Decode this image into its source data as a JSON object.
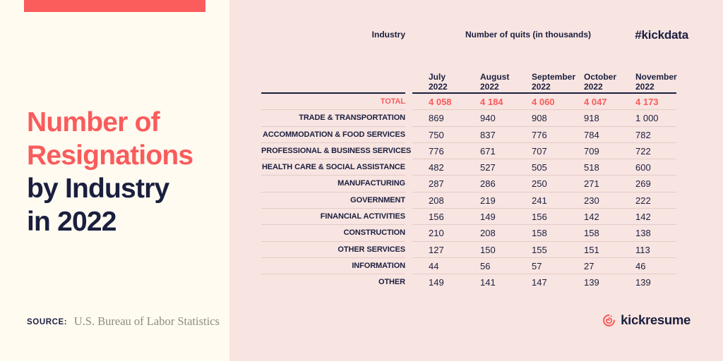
{
  "colors": {
    "left_background": "#FFFBF1",
    "right_background": "#F8E4E1",
    "accent_coral": "#F95C5C",
    "navy": "#1A1F3E",
    "separator": "#E3CCC8",
    "source_gray": "#8F8B85"
  },
  "left_panel": {
    "title_line1": "Number of",
    "title_line2": "Resignations",
    "title_line3": "by Industry",
    "title_line4": "in 2022",
    "source_label": "SOURCE:",
    "source_text": "U.S. Bureau of Labor Statistics"
  },
  "header": {
    "industry_label": "Industry",
    "quits_label": "Number of quits (in thousands)",
    "hashtag": "#kickdata"
  },
  "table": {
    "months": [
      {
        "name": "July",
        "year": "2022"
      },
      {
        "name": "August",
        "year": "2022"
      },
      {
        "name": "September",
        "year": "2022"
      },
      {
        "name": "October",
        "year": "2022"
      },
      {
        "name": "November",
        "year": "2022"
      }
    ],
    "rows": [
      {
        "label": "TOTAL",
        "highlight": true,
        "values": [
          "4 058",
          "4 184",
          "4 060",
          "4 047",
          "4 173"
        ]
      },
      {
        "label": "TRADE & TRANSPORTATION",
        "highlight": false,
        "values": [
          "869",
          "940",
          "908",
          "918",
          "1 000"
        ]
      },
      {
        "label": "ACCOMMODATION & FOOD SERVICES",
        "highlight": false,
        "values": [
          "750",
          "837",
          "776",
          "784",
          "782"
        ]
      },
      {
        "label": "PROFESSIONAL & BUSINESS SERVICES",
        "highlight": false,
        "values": [
          "776",
          "671",
          "707",
          "709",
          "722"
        ]
      },
      {
        "label": "HEALTH CARE & SOCIAL ASSISTANCE",
        "highlight": false,
        "values": [
          "482",
          "527",
          "505",
          "518",
          "600"
        ]
      },
      {
        "label": "MANUFACTURING",
        "highlight": false,
        "values": [
          "287",
          "286",
          "250",
          "271",
          "269"
        ]
      },
      {
        "label": "GOVERNMENT",
        "highlight": false,
        "values": [
          "208",
          "219",
          "241",
          "230",
          "222"
        ]
      },
      {
        "label": "FINANCIAL ACTIVITIES",
        "highlight": false,
        "values": [
          "156",
          "149",
          "156",
          "142",
          "142"
        ]
      },
      {
        "label": "CONSTRUCTION",
        "highlight": false,
        "values": [
          "210",
          "208",
          "158",
          "158",
          "138"
        ]
      },
      {
        "label": "OTHER SERVICES",
        "highlight": false,
        "values": [
          "127",
          "150",
          "155",
          "151",
          "113"
        ]
      },
      {
        "label": "INFORMATION",
        "highlight": false,
        "values": [
          "44",
          "56",
          "57",
          "27",
          "46"
        ]
      },
      {
        "label": "OTHER",
        "highlight": false,
        "values": [
          "149",
          "141",
          "147",
          "139",
          "139"
        ]
      }
    ]
  },
  "footer": {
    "brand": "kickresume",
    "logo_icon": "chameleon-spiral-icon"
  },
  "chart_data": {
    "type": "table",
    "title": "Number of Resignations by Industry in 2022",
    "subtitle": "Number of quits (in thousands)",
    "source": "U.S. Bureau of Labor Statistics",
    "columns": [
      "July 2022",
      "August 2022",
      "September 2022",
      "October 2022",
      "November 2022"
    ],
    "categories": [
      "TOTAL",
      "TRADE & TRANSPORTATION",
      "ACCOMMODATION & FOOD SERVICES",
      "PROFESSIONAL & BUSINESS SERVICES",
      "HEALTH CARE & SOCIAL ASSISTANCE",
      "MANUFACTURING",
      "GOVERNMENT",
      "FINANCIAL ACTIVITIES",
      "CONSTRUCTION",
      "OTHER SERVICES",
      "INFORMATION",
      "OTHER"
    ],
    "series": [
      {
        "name": "July 2022",
        "values": [
          4058,
          869,
          750,
          776,
          482,
          287,
          208,
          156,
          210,
          127,
          44,
          149
        ]
      },
      {
        "name": "August 2022",
        "values": [
          4184,
          940,
          837,
          671,
          527,
          286,
          219,
          149,
          208,
          150,
          56,
          141
        ]
      },
      {
        "name": "September 2022",
        "values": [
          4060,
          908,
          776,
          707,
          505,
          250,
          241,
          156,
          158,
          155,
          57,
          147
        ]
      },
      {
        "name": "October 2022",
        "values": [
          4047,
          918,
          784,
          709,
          518,
          271,
          230,
          142,
          158,
          151,
          27,
          139
        ]
      },
      {
        "name": "November 2022",
        "values": [
          4173,
          1000,
          782,
          722,
          600,
          269,
          222,
          142,
          138,
          113,
          46,
          139
        ]
      }
    ]
  }
}
